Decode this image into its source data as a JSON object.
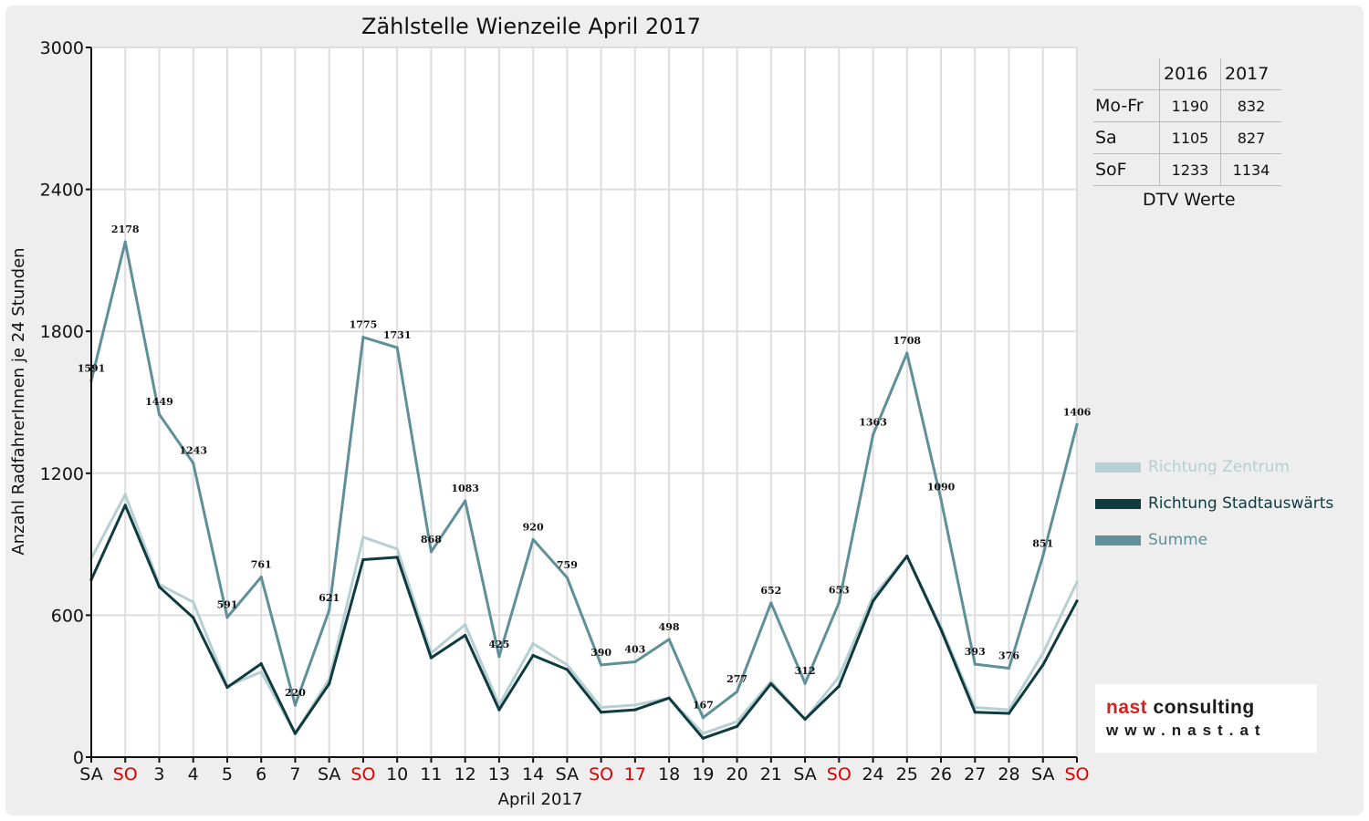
{
  "chart_data": {
    "type": "line",
    "title": "Zählstelle Wienzeile April 2017",
    "xlabel": "April 2017",
    "ylabel": "Anzahl RadfahrerInnen je 24 Stunden",
    "ylim": [
      0,
      3000
    ],
    "yticks": [
      "0",
      "600",
      "1200",
      "1800",
      "2400",
      "3000"
    ],
    "categories": [
      "SA",
      "SO",
      "3",
      "4",
      "5",
      "6",
      "7",
      "SA",
      "SO",
      "10",
      "11",
      "12",
      "13",
      "14",
      "SA",
      "SO",
      "17",
      "18",
      "19",
      "20",
      "21",
      "SA",
      "SO",
      "24",
      "25",
      "26",
      "27",
      "28",
      "SA",
      "SO"
    ],
    "red_categories": [
      1,
      8,
      15,
      16,
      22,
      29
    ],
    "grid": true,
    "legend_position": "right",
    "series": [
      {
        "name": "Richtung Zentrum",
        "color": "#b6cfd2",
        "width": 3,
        "values": [
          840,
          1110,
          730,
          655,
          300,
          360,
          100,
          330,
          930,
          880,
          440,
          560,
          220,
          480,
          390,
          210,
          220,
          250,
          100,
          150,
          320,
          160,
          340,
          680,
          850,
          550,
          210,
          200,
          440,
          740
        ]
      },
      {
        "name": "Richtung Stadtauswärts",
        "color": "#0e3a40",
        "width": 3,
        "values": [
          750,
          1065,
          720,
          590,
          295,
          395,
          100,
          310,
          835,
          845,
          420,
          515,
          200,
          430,
          370,
          190,
          200,
          250,
          80,
          130,
          310,
          160,
          300,
          660,
          850,
          540,
          190,
          185,
          390,
          660
        ]
      },
      {
        "name": "Summe",
        "color": "#5f8f98",
        "width": 3,
        "values": [
          1591,
          2178,
          1449,
          1243,
          591,
          761,
          220,
          621,
          1775,
          1731,
          868,
          1083,
          425,
          920,
          759,
          390,
          403,
          498,
          167,
          277,
          652,
          312,
          653,
          1363,
          1708,
          1090,
          393,
          376,
          851,
          1406
        ],
        "labels": [
          "1591",
          "2178",
          "1449",
          "1243",
          "591",
          "761",
          "220",
          "621",
          "1775",
          "1731",
          "868",
          "1083",
          "425",
          "920",
          "759",
          "390",
          "403",
          "498",
          "167",
          "277",
          "652",
          "312",
          "653",
          "1363",
          "1708",
          "1090",
          "393",
          "376",
          "851",
          "1406"
        ]
      }
    ]
  },
  "dtv_table": {
    "headers": [
      "2016",
      "2017"
    ],
    "rows": [
      {
        "label": "Mo-Fr",
        "v2016": "1190",
        "v2017": "832"
      },
      {
        "label": "Sa",
        "v2016": "1105",
        "v2017": "827"
      },
      {
        "label": "SoF",
        "v2016": "1233",
        "v2017": "1134"
      }
    ],
    "caption": "DTV Werte"
  },
  "legend": [
    {
      "label": "Richtung Zentrum",
      "color": "#b6cfd2"
    },
    {
      "label": "Richtung Stadtauswärts",
      "color": "#0e3a40"
    },
    {
      "label": "Summe",
      "color": "#5f8f98"
    }
  ],
  "brand": {
    "name_part1": "nast",
    "name_part2": " consulting",
    "url": "www.nast.at"
  }
}
